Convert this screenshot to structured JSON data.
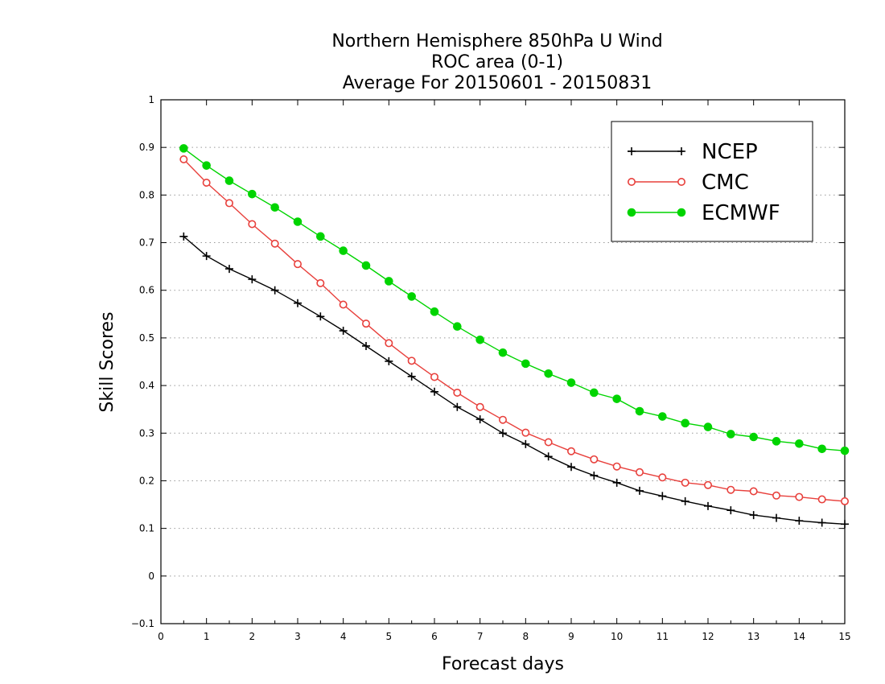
{
  "chart_data": {
    "type": "line",
    "title": [
      "Northern Hemisphere 850hPa U Wind",
      "ROC area (0-1)",
      "Average For 20150601 - 20150831"
    ],
    "xlabel": "Forecast days",
    "ylabel": "Skill Scores",
    "xlim": [
      0,
      15
    ],
    "ylim": [
      -0.1,
      1
    ],
    "x_ticks": [
      "0",
      "1",
      "2",
      "3",
      "4",
      "5",
      "6",
      "7",
      "8",
      "9",
      "10",
      "11",
      "12",
      "13",
      "14",
      "15"
    ],
    "y_ticks": [
      "−0.1",
      "0",
      "0.1",
      "0.2",
      "0.3",
      "0.4",
      "0.5",
      "0.6",
      "0.7",
      "0.8",
      "0.9",
      "1"
    ],
    "grid": true,
    "legend_position": "top-right",
    "x": [
      0.5,
      1,
      1.5,
      2,
      2.5,
      3,
      3.5,
      4,
      4.5,
      5,
      5.5,
      6,
      6.5,
      7,
      7.5,
      8,
      8.5,
      9,
      9.5,
      10,
      10.5,
      11,
      11.5,
      12,
      12.5,
      13,
      13.5,
      14,
      14.5,
      15
    ],
    "series": [
      {
        "name": "NCEP",
        "color": "#000000",
        "marker": "plus",
        "values": [
          0.713,
          0.672,
          0.645,
          0.623,
          0.6,
          0.573,
          0.545,
          0.515,
          0.483,
          0.451,
          0.419,
          0.387,
          0.355,
          0.329,
          0.3,
          0.277,
          0.251,
          0.229,
          0.211,
          0.196,
          0.179,
          0.168,
          0.157,
          0.147,
          0.138,
          0.128,
          0.122,
          0.116,
          0.112,
          0.109
        ]
      },
      {
        "name": "CMC",
        "color": "#e8403c",
        "marker": "open-circle",
        "values": [
          0.875,
          0.826,
          0.783,
          0.739,
          0.698,
          0.655,
          0.615,
          0.57,
          0.53,
          0.489,
          0.452,
          0.418,
          0.385,
          0.355,
          0.328,
          0.301,
          0.281,
          0.262,
          0.245,
          0.23,
          0.218,
          0.207,
          0.196,
          0.191,
          0.181,
          0.178,
          0.169,
          0.166,
          0.161,
          0.157
        ]
      },
      {
        "name": "ECMWF",
        "color": "#00d400",
        "marker": "filled-circle",
        "values": [
          0.898,
          0.862,
          0.83,
          0.802,
          0.774,
          0.744,
          0.713,
          0.683,
          0.652,
          0.619,
          0.587,
          0.555,
          0.524,
          0.496,
          0.469,
          0.446,
          0.425,
          0.406,
          0.385,
          0.372,
          0.346,
          0.335,
          0.321,
          0.313,
          0.298,
          0.292,
          0.283,
          0.278,
          0.267,
          0.263
        ]
      }
    ]
  }
}
